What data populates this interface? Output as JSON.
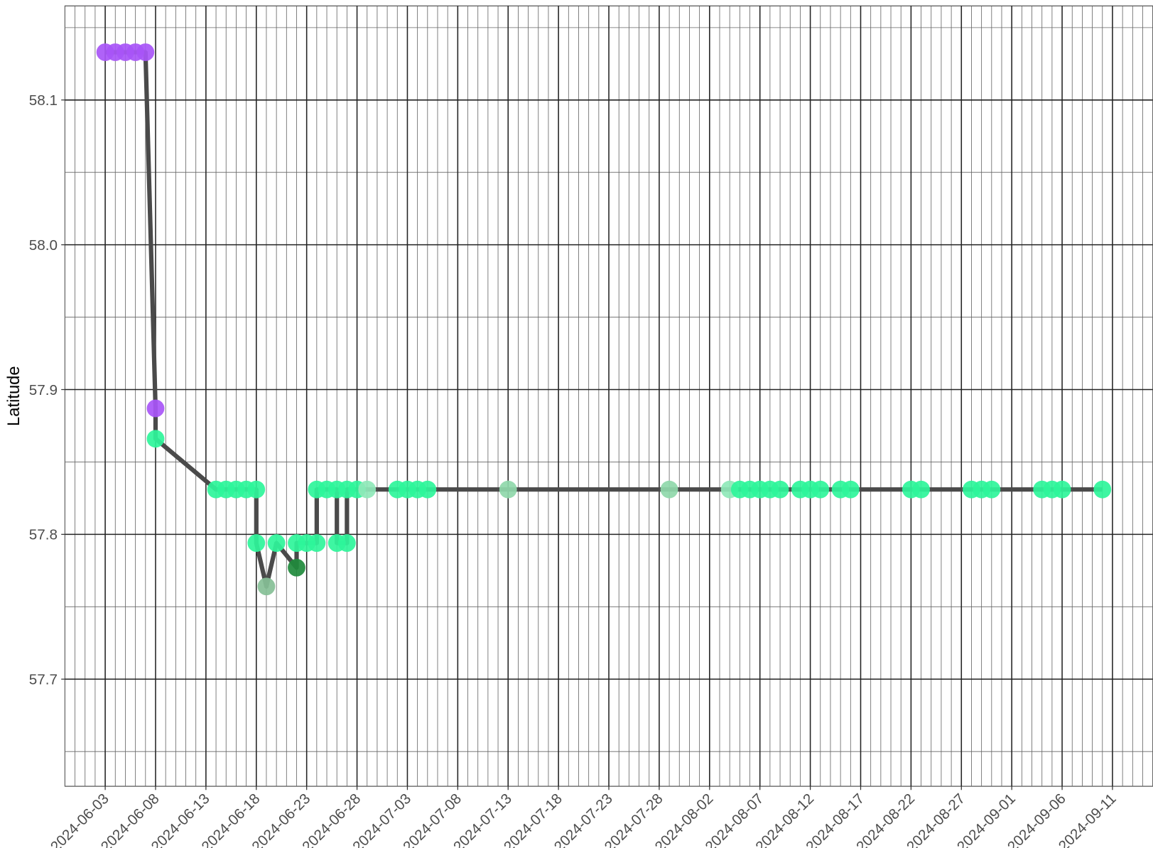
{
  "chart_data": {
    "type": "line",
    "y_label": "Latitude",
    "x": [
      "2024-06-03",
      "2024-06-04",
      "2024-06-05",
      "2024-06-06",
      "2024-06-07",
      "2024-06-08",
      "2024-06-08",
      "2024-06-14",
      "2024-06-15",
      "2024-06-16",
      "2024-06-17",
      "2024-06-18",
      "2024-06-18",
      "2024-06-19",
      "2024-06-20",
      "2024-06-22",
      "2024-06-22",
      "2024-06-23",
      "2024-06-24",
      "2024-06-24",
      "2024-06-25",
      "2024-06-26",
      "2024-06-26",
      "2024-06-27",
      "2024-06-27",
      "2024-06-28",
      "2024-06-29",
      "2024-07-02",
      "2024-07-03",
      "2024-07-04",
      "2024-07-05",
      "2024-07-13",
      "2024-07-29",
      "2024-08-04",
      "2024-08-05",
      "2024-08-06",
      "2024-08-07",
      "2024-08-08",
      "2024-08-09",
      "2024-08-11",
      "2024-08-12",
      "2024-08-13",
      "2024-08-15",
      "2024-08-16",
      "2024-08-22",
      "2024-08-23",
      "2024-08-28",
      "2024-08-29",
      "2024-08-30",
      "2024-09-04",
      "2024-09-05",
      "2024-09-06",
      "2024-09-10"
    ],
    "values": [
      58.133,
      58.133,
      58.133,
      58.133,
      58.133,
      57.887,
      57.866,
      57.831,
      57.831,
      57.831,
      57.831,
      57.831,
      57.794,
      57.764,
      57.794,
      57.777,
      57.794,
      57.794,
      57.794,
      57.831,
      57.831,
      57.831,
      57.794,
      57.794,
      57.831,
      57.831,
      57.831,
      57.831,
      57.831,
      57.831,
      57.831,
      57.831,
      57.831,
      57.831,
      57.831,
      57.831,
      57.831,
      57.831,
      57.831,
      57.831,
      57.831,
      57.831,
      57.831,
      57.831,
      57.831,
      57.831,
      57.831,
      57.831,
      57.831,
      57.831,
      57.831,
      57.831,
      57.831
    ],
    "colors": [
      "#a855f7",
      "#a855f7",
      "#a855f7",
      "#a855f7",
      "#a855f7",
      "#a855f7",
      "#2ef59a",
      "#2ef59a",
      "#2ef59a",
      "#2ef59a",
      "#2ef59a",
      "#2ef59a",
      "#2ef59a",
      "#86bf96",
      "#2ef59a",
      "#1f8a3c",
      "#2ef59a",
      "#2ef59a",
      "#2ef59a",
      "#2ef59a",
      "#2ef59a",
      "#2ef59a",
      "#2ef59a",
      "#2ef59a",
      "#2ef59a",
      "#2ef59a",
      "#8fe8b8",
      "#2ef59a",
      "#2ef59a",
      "#2ef59a",
      "#2ef59a",
      "#8fd8aa",
      "#8fd8aa",
      "#8fe8b8",
      "#2ef59a",
      "#2ef59a",
      "#2ef59a",
      "#2ef59a",
      "#2ef59a",
      "#2ef59a",
      "#2ef59a",
      "#2ef59a",
      "#2ef59a",
      "#2ef59a",
      "#2ef59a",
      "#2ef59a",
      "#2ef59a",
      "#2ef59a",
      "#2ef59a",
      "#2ef59a",
      "#2ef59a",
      "#2ef59a",
      "#2ef59a"
    ],
    "line_color": "#4a4a4a",
    "xlim": [
      "2024-05-30",
      "2024-09-15"
    ],
    "xticks": [
      "2024-06-03",
      "2024-06-08",
      "2024-06-13",
      "2024-06-18",
      "2024-06-23",
      "2024-06-28",
      "2024-07-03",
      "2024-07-08",
      "2024-07-13",
      "2024-07-18",
      "2024-07-23",
      "2024-07-28",
      "2024-08-02",
      "2024-08-07",
      "2024-08-12",
      "2024-08-17",
      "2024-08-22",
      "2024-08-27",
      "2024-09-01",
      "2024-09-06",
      "2024-09-11"
    ],
    "ylim": [
      57.626,
      58.165
    ],
    "yticks": [
      57.7,
      57.8,
      57.9,
      {
        "value": 58,
        "label": "58.0"
      },
      58.1
    ],
    "grid": true
  }
}
